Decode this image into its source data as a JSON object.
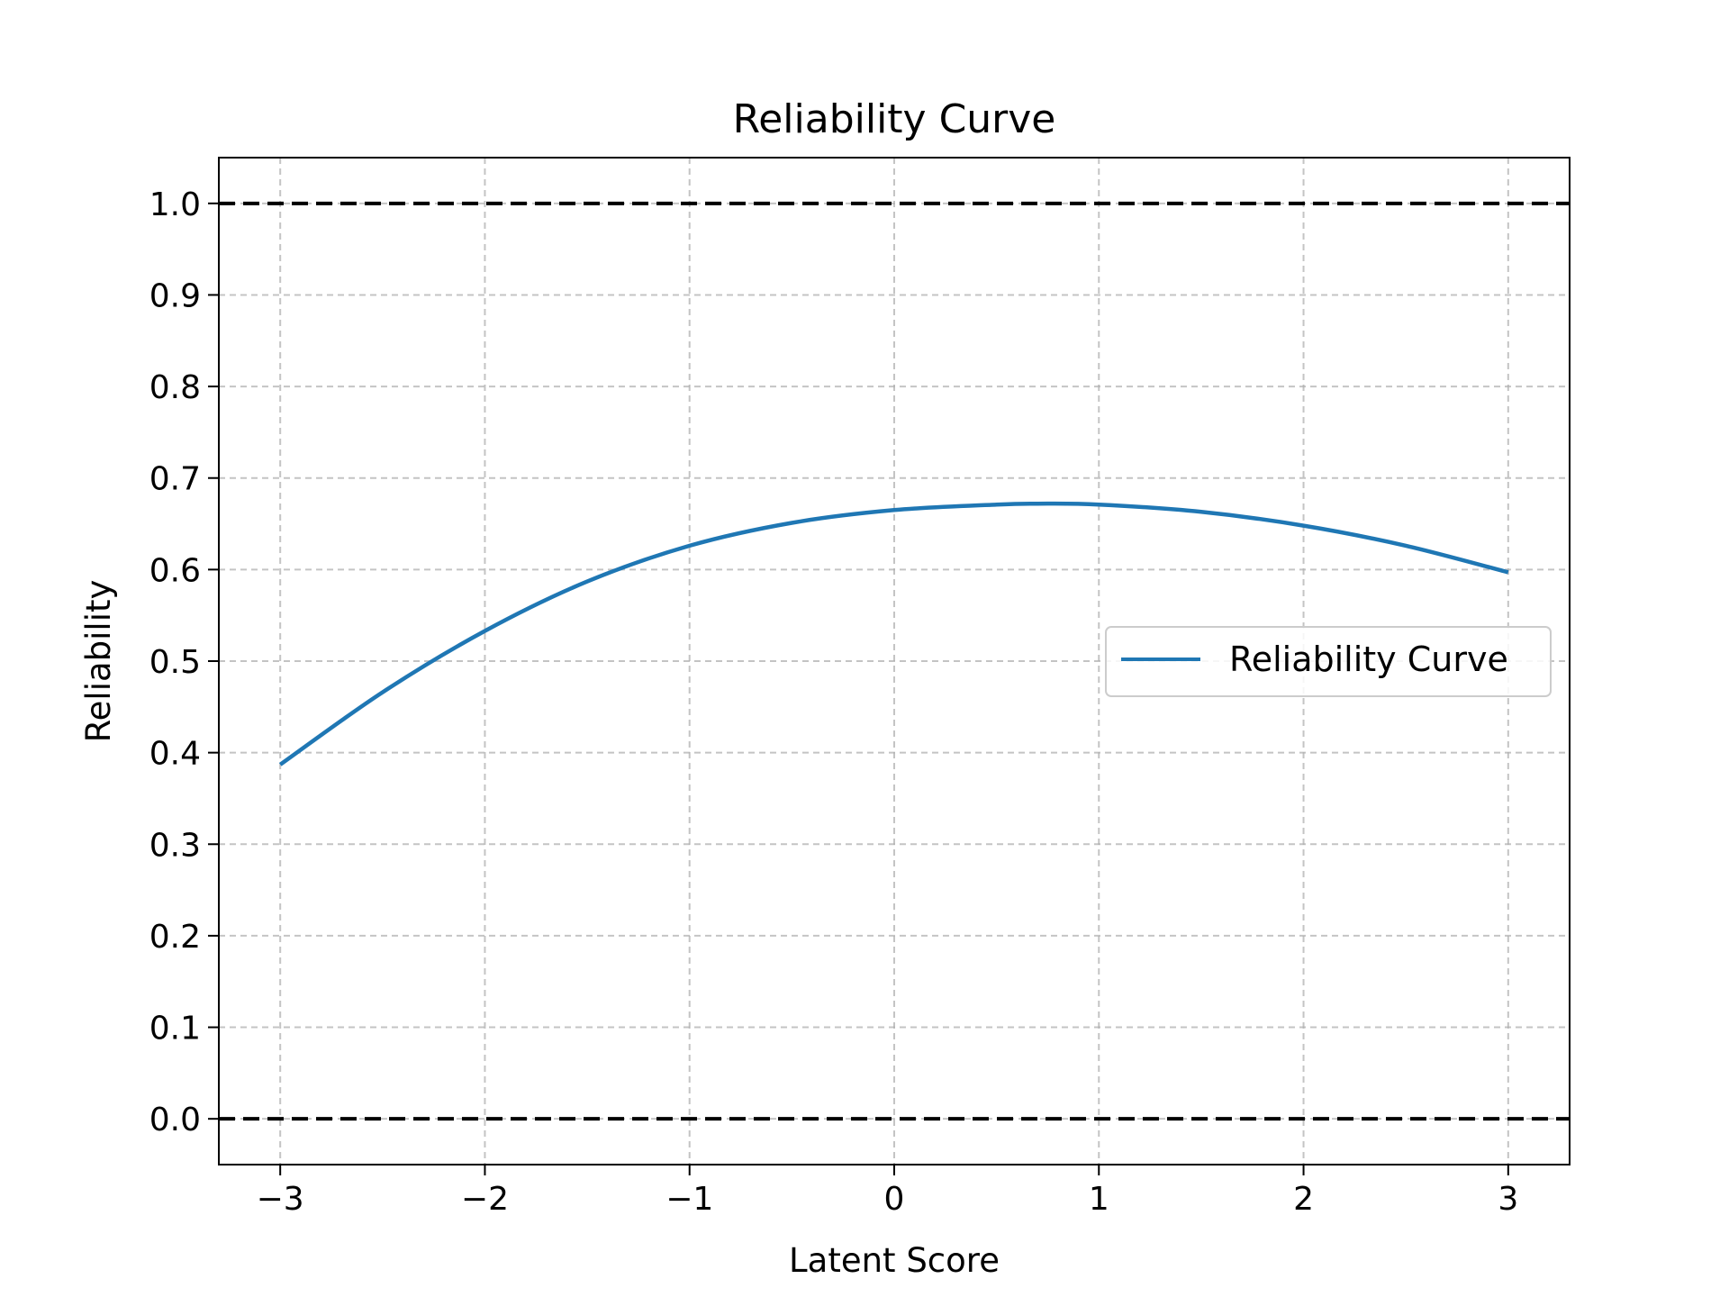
{
  "chart_data": {
    "type": "line",
    "title": "Reliability Curve",
    "xlabel": "Latent Score",
    "ylabel": "Reliability",
    "xlim": [
      -3.3,
      3.3
    ],
    "ylim": [
      -0.05,
      1.05
    ],
    "xticks": [
      -3,
      -2,
      -1,
      0,
      1,
      2,
      3
    ],
    "xtick_labels": [
      "−3",
      "−2",
      "−1",
      "0",
      "1",
      "2",
      "3"
    ],
    "yticks": [
      0.0,
      0.1,
      0.2,
      0.3,
      0.4,
      0.5,
      0.6,
      0.7,
      0.8,
      0.9,
      1.0
    ],
    "ytick_labels": [
      "0.0",
      "0.1",
      "0.2",
      "0.3",
      "0.4",
      "0.5",
      "0.6",
      "0.7",
      "0.8",
      "0.9",
      "1.0"
    ],
    "grid": true,
    "reference_lines": [
      {
        "y": 1.0,
        "style": "dashed",
        "color": "#000000"
      },
      {
        "y": 0.0,
        "style": "dashed",
        "color": "#000000"
      }
    ],
    "series": [
      {
        "name": "Reliability Curve",
        "color": "#1f77b4",
        "x": [
          -3.0,
          -2.5,
          -2.0,
          -1.5,
          -1.0,
          -0.5,
          0.0,
          0.5,
          0.7,
          1.0,
          1.5,
          2.0,
          2.5,
          3.0
        ],
        "y": [
          0.387,
          0.466,
          0.533,
          0.587,
          0.626,
          0.651,
          0.665,
          0.671,
          0.672,
          0.671,
          0.663,
          0.648,
          0.626,
          0.597
        ]
      }
    ],
    "legend": {
      "position": "center-right",
      "entries": [
        "Reliability Curve"
      ]
    }
  }
}
